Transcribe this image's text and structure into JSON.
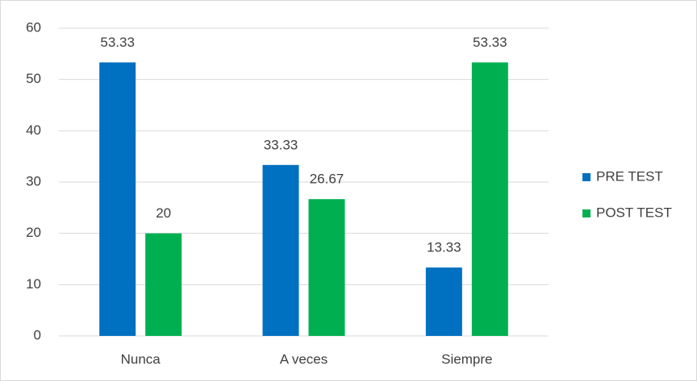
{
  "chart_data": {
    "type": "bar",
    "categories": [
      "Nunca",
      "A veces",
      "Siempre"
    ],
    "series": [
      {
        "name": "PRE TEST",
        "color": "#0070c0",
        "values": [
          53.33,
          33.33,
          13.33
        ]
      },
      {
        "name": "POST TEST",
        "color": "#00b050",
        "values": [
          20,
          26.67,
          53.33
        ]
      }
    ],
    "ylim": [
      0,
      60
    ],
    "yticks": [
      0,
      10,
      20,
      30,
      40,
      50,
      60
    ],
    "grid": true,
    "legend": "right"
  }
}
